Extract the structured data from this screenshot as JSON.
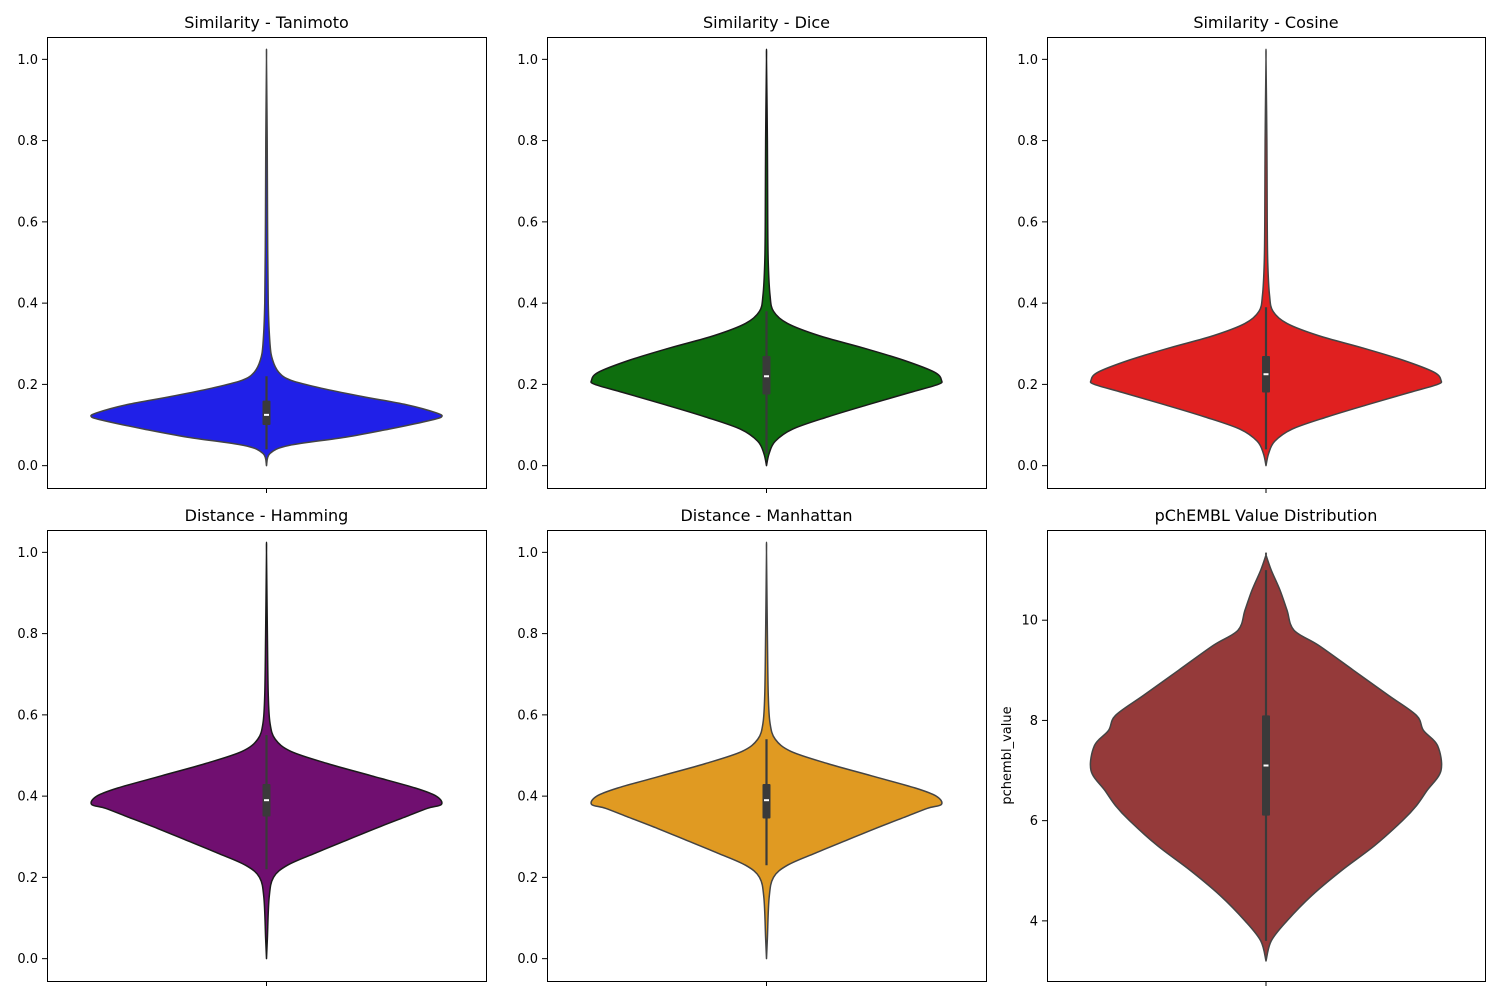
{
  "chart_data": [
    {
      "type": "violin",
      "title": "Similarity - Tanimoto",
      "xlabel": "",
      "ylabel": "",
      "ylim": [
        -0.055,
        1.055
      ],
      "yticks": [
        0.0,
        0.2,
        0.4,
        0.6,
        0.8,
        1.0
      ],
      "ytick_labels": [
        "0.0",
        "0.2",
        "0.4",
        "0.6",
        "0.8",
        "1.0"
      ],
      "color": "#2020e8",
      "outline_color": "#444444",
      "range": [
        0.0,
        1.0
      ],
      "quartiles": [
        0.1,
        0.125,
        0.16
      ],
      "whiskers": [
        0.04,
        0.22
      ],
      "density": [
        [
          0.0,
          0.0
        ],
        [
          0.03,
          0.02
        ],
        [
          0.05,
          0.13
        ],
        [
          0.07,
          0.45
        ],
        [
          0.09,
          0.7
        ],
        [
          0.11,
          0.92
        ],
        [
          0.12,
          1.0
        ],
        [
          0.13,
          0.97
        ],
        [
          0.15,
          0.8
        ],
        [
          0.17,
          0.55
        ],
        [
          0.19,
          0.32
        ],
        [
          0.21,
          0.14
        ],
        [
          0.23,
          0.07
        ],
        [
          0.26,
          0.035
        ],
        [
          0.3,
          0.02
        ],
        [
          0.4,
          0.01
        ],
        [
          0.6,
          0.006
        ],
        [
          0.8,
          0.004
        ],
        [
          1.0,
          0.0
        ]
      ]
    },
    {
      "type": "violin",
      "title": "Similarity - Dice",
      "xlabel": "",
      "ylabel": "",
      "ylim": [
        -0.055,
        1.055
      ],
      "yticks": [
        0.0,
        0.2,
        0.4,
        0.6,
        0.8,
        1.0
      ],
      "ytick_labels": [
        "0.0",
        "0.2",
        "0.4",
        "0.6",
        "0.8",
        "1.0"
      ],
      "color": "#0e6e0e",
      "outline_color": "#1a1a1a",
      "range": [
        0.0,
        1.0
      ],
      "quartiles": [
        0.175,
        0.22,
        0.27
      ],
      "whiskers": [
        0.03,
        0.38
      ],
      "density": [
        [
          0.0,
          0.0
        ],
        [
          0.03,
          0.015
        ],
        [
          0.06,
          0.05
        ],
        [
          0.09,
          0.15
        ],
        [
          0.12,
          0.35
        ],
        [
          0.15,
          0.58
        ],
        [
          0.18,
          0.82
        ],
        [
          0.2,
          0.98
        ],
        [
          0.21,
          1.0
        ],
        [
          0.23,
          0.96
        ],
        [
          0.26,
          0.78
        ],
        [
          0.29,
          0.55
        ],
        [
          0.32,
          0.3
        ],
        [
          0.35,
          0.12
        ],
        [
          0.38,
          0.04
        ],
        [
          0.42,
          0.02
        ],
        [
          0.5,
          0.01
        ],
        [
          0.6,
          0.007
        ],
        [
          0.8,
          0.005
        ],
        [
          1.0,
          0.0
        ]
      ]
    },
    {
      "type": "violin",
      "title": "Similarity - Cosine",
      "xlabel": "",
      "ylabel": "",
      "ylim": [
        -0.055,
        1.055
      ],
      "yticks": [
        0.0,
        0.2,
        0.4,
        0.6,
        0.8,
        1.0
      ],
      "ytick_labels": [
        "0.0",
        "0.2",
        "0.4",
        "0.6",
        "0.8",
        "1.0"
      ],
      "color": "#e02020",
      "outline_color": "#444444",
      "range": [
        0.0,
        1.0
      ],
      "quartiles": [
        0.18,
        0.225,
        0.27
      ],
      "whiskers": [
        0.04,
        0.39
      ],
      "density": [
        [
          0.0,
          0.0
        ],
        [
          0.03,
          0.015
        ],
        [
          0.06,
          0.05
        ],
        [
          0.09,
          0.15
        ],
        [
          0.12,
          0.35
        ],
        [
          0.15,
          0.58
        ],
        [
          0.18,
          0.82
        ],
        [
          0.2,
          0.98
        ],
        [
          0.21,
          1.0
        ],
        [
          0.23,
          0.96
        ],
        [
          0.26,
          0.78
        ],
        [
          0.29,
          0.55
        ],
        [
          0.32,
          0.3
        ],
        [
          0.35,
          0.12
        ],
        [
          0.38,
          0.04
        ],
        [
          0.42,
          0.02
        ],
        [
          0.5,
          0.01
        ],
        [
          0.6,
          0.007
        ],
        [
          0.8,
          0.005
        ],
        [
          1.0,
          0.0
        ]
      ]
    },
    {
      "type": "violin",
      "title": "Distance - Hamming",
      "xlabel": "",
      "ylabel": "",
      "ylim": [
        -0.055,
        1.055
      ],
      "yticks": [
        0.0,
        0.2,
        0.4,
        0.6,
        0.8,
        1.0
      ],
      "ytick_labels": [
        "0.0",
        "0.2",
        "0.4",
        "0.6",
        "0.8",
        "1.0"
      ],
      "color": "#700f70",
      "outline_color": "#1a1a1a",
      "range": [
        0.0,
        1.0
      ],
      "quartiles": [
        0.35,
        0.39,
        0.43
      ],
      "whiskers": [
        0.22,
        0.55
      ],
      "density": [
        [
          0.0,
          0.0
        ],
        [
          0.05,
          0.005
        ],
        [
          0.15,
          0.015
        ],
        [
          0.2,
          0.04
        ],
        [
          0.23,
          0.12
        ],
        [
          0.26,
          0.28
        ],
        [
          0.29,
          0.45
        ],
        [
          0.32,
          0.62
        ],
        [
          0.35,
          0.8
        ],
        [
          0.37,
          0.92
        ],
        [
          0.38,
          1.0
        ],
        [
          0.4,
          0.97
        ],
        [
          0.42,
          0.85
        ],
        [
          0.45,
          0.6
        ],
        [
          0.48,
          0.35
        ],
        [
          0.51,
          0.14
        ],
        [
          0.54,
          0.05
        ],
        [
          0.58,
          0.02
        ],
        [
          0.65,
          0.01
        ],
        [
          0.8,
          0.005
        ],
        [
          1.0,
          0.0
        ]
      ]
    },
    {
      "type": "violin",
      "title": "Distance - Manhattan",
      "xlabel": "",
      "ylabel": "",
      "ylim": [
        -0.055,
        1.055
      ],
      "yticks": [
        0.0,
        0.2,
        0.4,
        0.6,
        0.8,
        1.0
      ],
      "ytick_labels": [
        "0.0",
        "0.2",
        "0.4",
        "0.6",
        "0.8",
        "1.0"
      ],
      "color": "#e09a22",
      "outline_color": "#444444",
      "range": [
        0.0,
        1.0
      ],
      "quartiles": [
        0.345,
        0.39,
        0.43
      ],
      "whiskers": [
        0.23,
        0.54
      ],
      "density": [
        [
          0.0,
          0.0
        ],
        [
          0.05,
          0.005
        ],
        [
          0.15,
          0.015
        ],
        [
          0.2,
          0.04
        ],
        [
          0.23,
          0.12
        ],
        [
          0.26,
          0.28
        ],
        [
          0.29,
          0.45
        ],
        [
          0.32,
          0.62
        ],
        [
          0.35,
          0.8
        ],
        [
          0.37,
          0.92
        ],
        [
          0.38,
          1.0
        ],
        [
          0.4,
          0.97
        ],
        [
          0.42,
          0.85
        ],
        [
          0.45,
          0.6
        ],
        [
          0.48,
          0.35
        ],
        [
          0.51,
          0.14
        ],
        [
          0.54,
          0.05
        ],
        [
          0.58,
          0.02
        ],
        [
          0.65,
          0.01
        ],
        [
          0.8,
          0.005
        ],
        [
          1.0,
          0.0
        ]
      ]
    },
    {
      "type": "violin",
      "title": "pChEMBL Value Distribution",
      "xlabel": "",
      "ylabel": "pchembl_value",
      "ylim": [
        2.8,
        11.8
      ],
      "yticks": [
        4,
        6,
        8,
        10
      ],
      "ytick_labels": [
        "4",
        "6",
        "8",
        "10"
      ],
      "color": "#953a3a",
      "outline_color": "#444444",
      "range": [
        3.2,
        11.3
      ],
      "quartiles": [
        6.1,
        7.1,
        8.1
      ],
      "whiskers": [
        3.6,
        11.0
      ],
      "density": [
        [
          3.2,
          0.0
        ],
        [
          3.6,
          0.03
        ],
        [
          4.0,
          0.12
        ],
        [
          4.5,
          0.26
        ],
        [
          5.0,
          0.43
        ],
        [
          5.5,
          0.62
        ],
        [
          6.0,
          0.78
        ],
        [
          6.3,
          0.86
        ],
        [
          6.6,
          0.92
        ],
        [
          7.0,
          1.0
        ],
        [
          7.5,
          0.98
        ],
        [
          7.8,
          0.9
        ],
        [
          8.1,
          0.86
        ],
        [
          8.5,
          0.7
        ],
        [
          9.0,
          0.5
        ],
        [
          9.5,
          0.3
        ],
        [
          9.8,
          0.16
        ],
        [
          10.2,
          0.12
        ],
        [
          10.6,
          0.08
        ],
        [
          11.0,
          0.03
        ],
        [
          11.3,
          0.0
        ]
      ]
    }
  ]
}
